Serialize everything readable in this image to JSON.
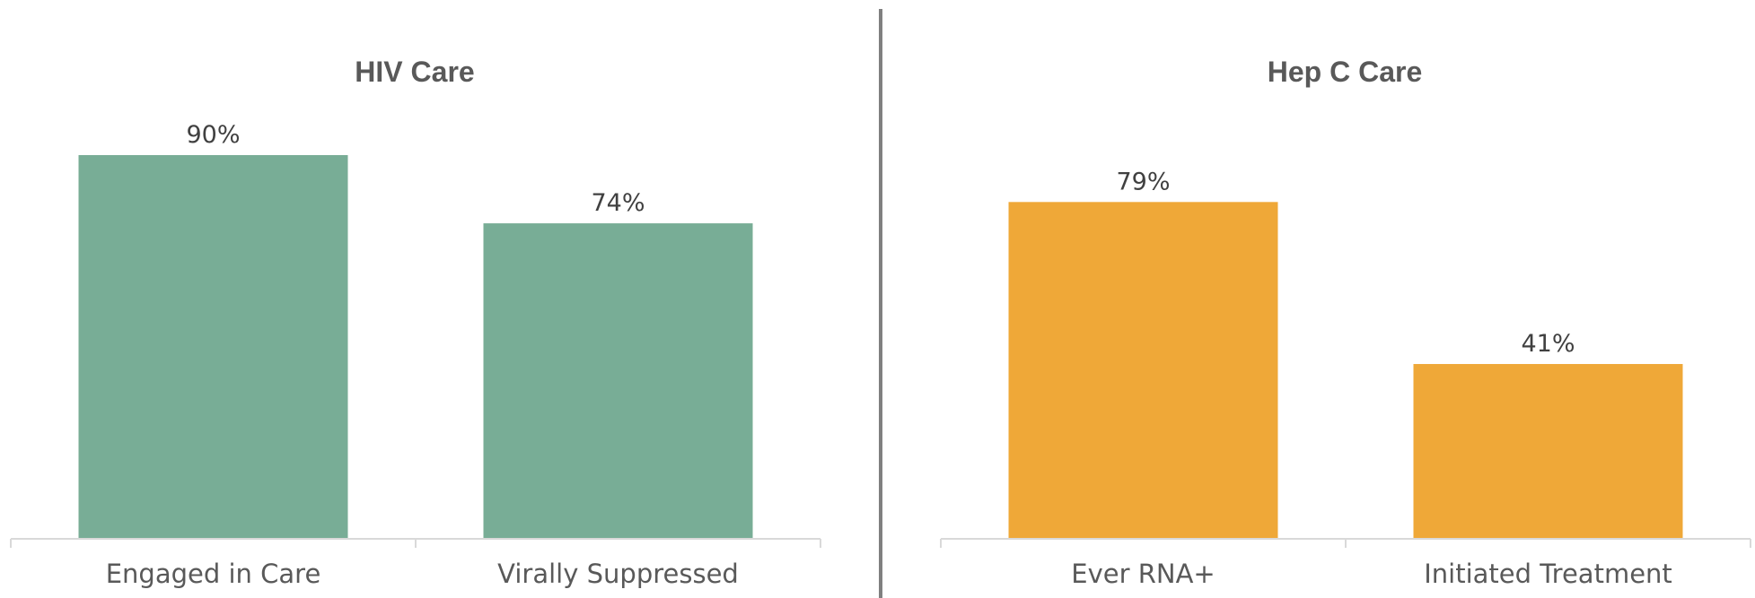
{
  "colors": {
    "hiv_bar": "#78ad96",
    "hcv_bar": "#efa838",
    "axis": "#d9d9d9",
    "divider": "#808080",
    "text": "#595959"
  },
  "chart_data": [
    {
      "type": "bar",
      "title": "HIV Care",
      "categories": [
        "Engaged in Care",
        "Virally Suppressed"
      ],
      "values": [
        90,
        74
      ],
      "value_labels": [
        "90%",
        "74%"
      ],
      "ylim": [
        0,
        100
      ],
      "grid": false,
      "color_key": "hiv_bar"
    },
    {
      "type": "bar",
      "title": "Hep C Care",
      "categories": [
        "Ever RNA+",
        "Initiated Treatment"
      ],
      "values": [
        79,
        41
      ],
      "value_labels": [
        "79%",
        "41%"
      ],
      "ylim": [
        0,
        100
      ],
      "grid": false,
      "color_key": "hcv_bar"
    }
  ]
}
